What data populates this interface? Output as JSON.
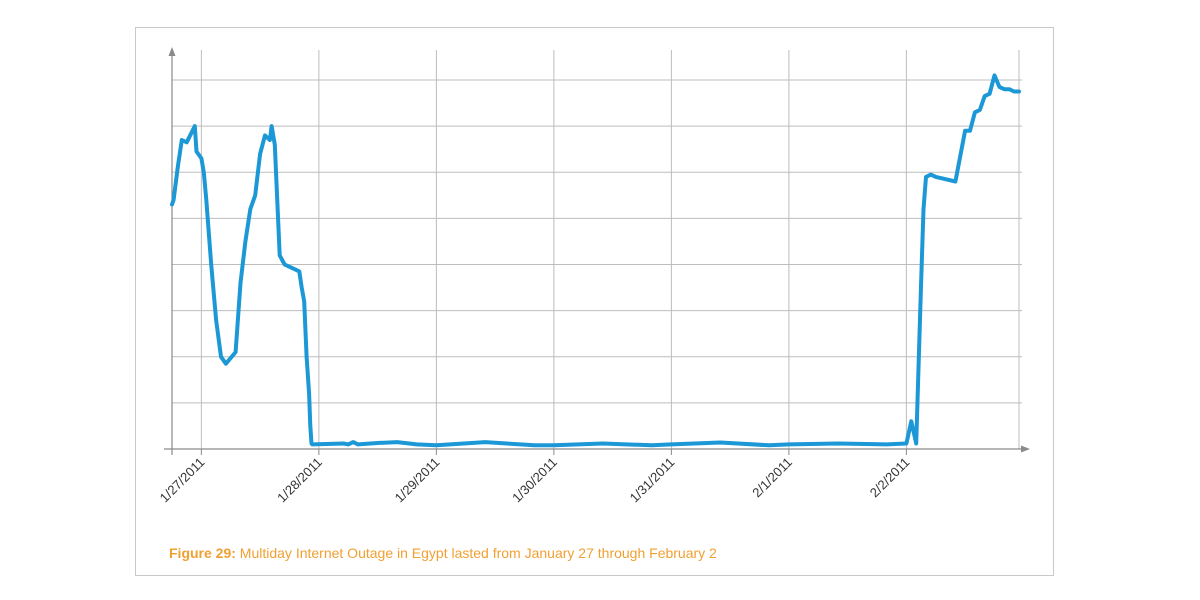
{
  "colors": {
    "series": "#1b98d5",
    "caption": "#f0a032",
    "grid": "#bdbdbd",
    "axis": "#8a8a8a"
  },
  "caption": {
    "lead": "Figure 29:",
    "text": " Multiday Internet Outage in Egypt lasted from January 27 through February 2"
  },
  "chart_data": {
    "type": "line",
    "title": "",
    "xlabel": "",
    "ylabel": "",
    "x_ticks": [
      "1/27/2011",
      "1/28/2011",
      "1/29/2011",
      "1/30/2011",
      "1/31/2011",
      "2/1/2011",
      "2/2/2011"
    ],
    "xlim": [
      "1/26/2011 18:00",
      "2/2/2011 23:00"
    ],
    "ylim": [
      0,
      8
    ],
    "y_gridlines": 8,
    "y_tick_labels_shown": false,
    "grid": true,
    "series": [
      {
        "x": [
          "1/26/2011 18:00",
          "1/26/2011 18:20",
          "1/26/2011 19:10",
          "1/26/2011 20:00",
          "1/26/2011 21:00",
          "1/26/2011 22:40",
          "1/26/2011 23:00",
          "1/27/2011 00:00",
          "1/27/2011 00:30",
          "1/27/2011 01:00",
          "1/27/2011 02:00",
          "1/27/2011 03:00",
          "1/27/2011 04:00",
          "1/27/2011 05:00",
          "1/27/2011 07:00",
          "1/27/2011 08:00",
          "1/27/2011 09:00",
          "1/27/2011 10:00",
          "1/27/2011 11:00",
          "1/27/2011 12:00",
          "1/27/2011 13:00",
          "1/27/2011 14:00",
          "1/27/2011 14:20",
          "1/27/2011 15:00",
          "1/27/2011 16:00",
          "1/27/2011 17:00",
          "1/27/2011 18:00",
          "1/27/2011 19:00",
          "1/27/2011 20:00",
          "1/27/2011 20:30",
          "1/27/2011 21:00",
          "1/27/2011 21:30",
          "1/27/2011 22:00",
          "1/27/2011 22:15",
          "1/27/2011 22:30",
          "1/27/2011 22:40",
          "1/28/2011 05:00",
          "1/28/2011 06:00",
          "1/28/2011 07:00",
          "1/28/2011 08:00",
          "1/28/2011 12:00",
          "1/28/2011 16:00",
          "1/28/2011 20:00",
          "1/29/2011 00:00",
          "1/29/2011 10:00",
          "1/29/2011 20:00",
          "1/30/2011 00:00",
          "1/30/2011 10:00",
          "1/30/2011 20:00",
          "1/31/2011 00:00",
          "1/31/2011 10:00",
          "1/31/2011 20:00",
          "2/1/2011 00:00",
          "2/1/2011 10:00",
          "2/1/2011 20:00",
          "2/2/2011 00:00",
          "2/2/2011 01:00",
          "2/2/2011 02:00",
          "2/2/2011 03:00",
          "2/2/2011 03:30",
          "2/2/2011 04:00",
          "2/2/2011 05:00",
          "2/2/2011 06:00",
          "2/2/2011 08:00",
          "2/2/2011 10:00",
          "2/2/2011 12:00",
          "2/2/2011 13:00",
          "2/2/2011 14:00",
          "2/2/2011 15:00",
          "2/2/2011 16:00",
          "2/2/2011 17:00",
          "2/2/2011 18:00",
          "2/2/2011 19:00",
          "2/2/2011 20:00",
          "2/2/2011 21:00",
          "2/2/2011 22:00",
          "2/2/2011 23:00"
        ],
        "y": [
          5.3,
          5.4,
          6.1,
          6.7,
          6.65,
          7.0,
          6.45,
          6.3,
          6.0,
          5.4,
          4.0,
          2.8,
          2.0,
          1.85,
          2.1,
          3.6,
          4.5,
          5.2,
          5.5,
          6.4,
          6.8,
          6.7,
          7.0,
          6.6,
          4.2,
          4.0,
          3.95,
          3.9,
          3.85,
          3.5,
          3.2,
          2.0,
          1.2,
          0.5,
          0.12,
          0.1,
          0.12,
          0.1,
          0.15,
          0.1,
          0.13,
          0.15,
          0.1,
          0.08,
          0.15,
          0.08,
          0.08,
          0.12,
          0.08,
          0.1,
          0.14,
          0.08,
          0.1,
          0.12,
          0.1,
          0.12,
          0.6,
          0.12,
          3.6,
          5.2,
          5.9,
          5.95,
          5.9,
          5.85,
          5.8,
          6.9,
          6.9,
          7.3,
          7.35,
          7.65,
          7.7,
          8.1,
          7.85,
          7.8,
          7.8,
          7.75,
          7.75
        ]
      }
    ]
  }
}
